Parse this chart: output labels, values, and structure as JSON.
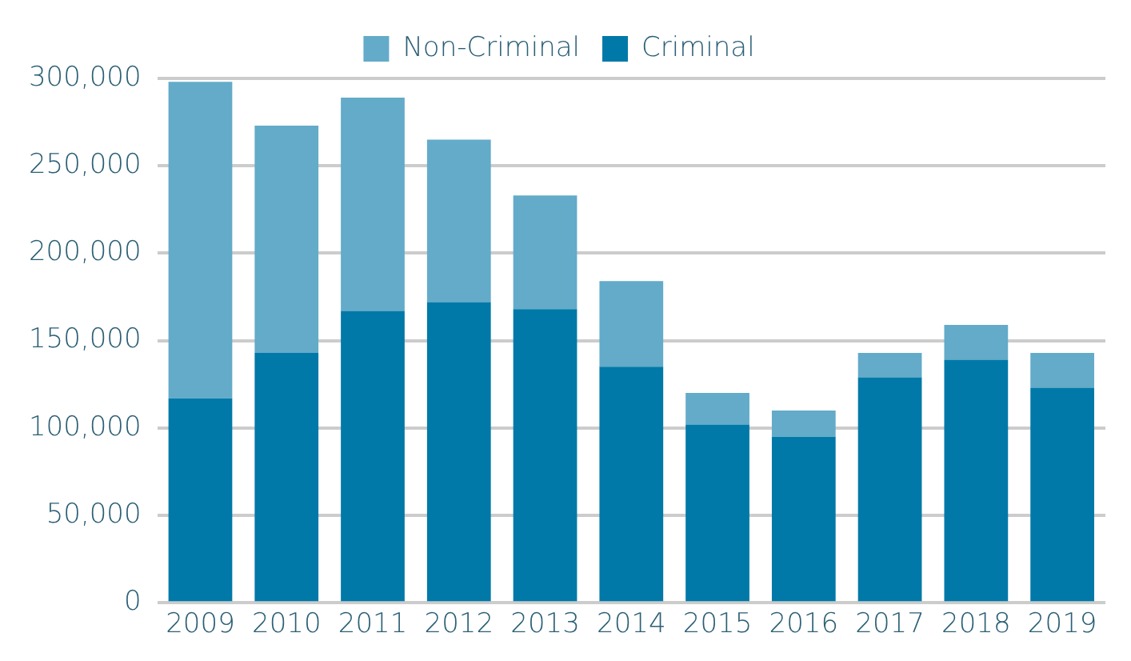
{
  "chart_data": {
    "type": "bar",
    "stacked": true,
    "categories": [
      "2009",
      "2010",
      "2011",
      "2012",
      "2013",
      "2014",
      "2015",
      "2016",
      "2017",
      "2018",
      "2019"
    ],
    "series": [
      {
        "name": "Criminal",
        "color": "#0079a8",
        "values": [
          117000,
          143000,
          167000,
          172000,
          168000,
          135000,
          102000,
          95000,
          129000,
          139000,
          123000
        ]
      },
      {
        "name": "Non-Criminal",
        "color": "#63abc9",
        "values": [
          181000,
          130000,
          122000,
          93000,
          65000,
          49000,
          18000,
          15000,
          14000,
          20000,
          20000
        ]
      }
    ],
    "ylim": [
      0,
      300000
    ],
    "yticks": [
      {
        "value": 0,
        "label": "0"
      },
      {
        "value": 50000,
        "label": "50,000"
      },
      {
        "value": 100000,
        "label": "100,000"
      },
      {
        "value": 150000,
        "label": "150,000"
      },
      {
        "value": 200000,
        "label": "200,000"
      },
      {
        "value": 250000,
        "label": "250,000"
      },
      {
        "value": 300000,
        "label": "300,000"
      }
    ],
    "grid": "y",
    "legend": "top"
  }
}
